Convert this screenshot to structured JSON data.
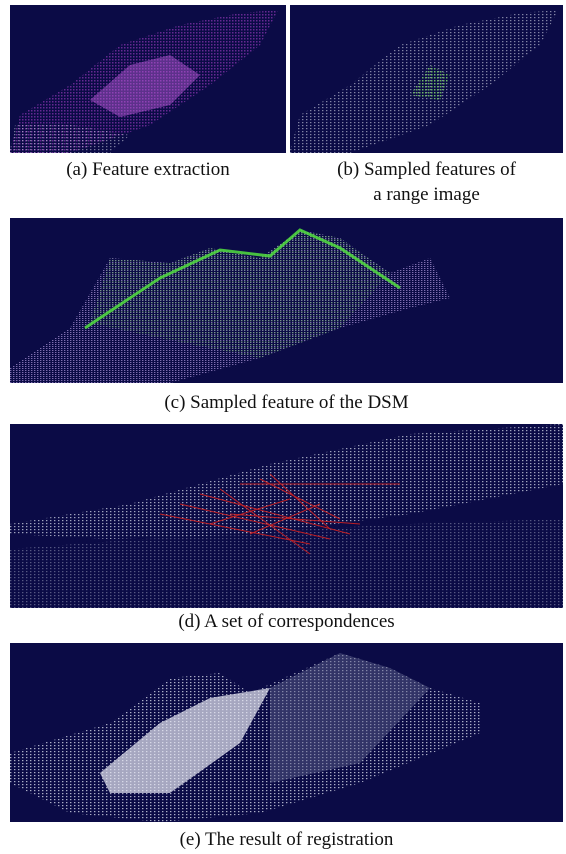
{
  "figure": {
    "panels": [
      {
        "caption": "(a) Feature extraction"
      },
      {
        "caption_lines": [
          "(b) Sampled features of",
          "a range image"
        ]
      },
      {
        "caption": "(c) Sampled feature of the DSM"
      },
      {
        "caption": "(d) A set of correspondences"
      },
      {
        "caption": "(e) The result of registration"
      }
    ]
  }
}
